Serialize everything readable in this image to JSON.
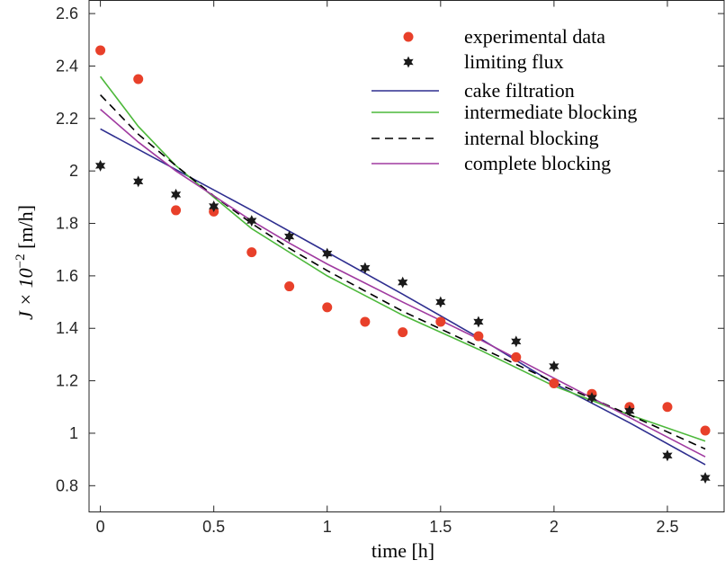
{
  "chart_data": {
    "type": "scatter",
    "title": "",
    "xlabel": "time [h]",
    "ylabel_parts": {
      "prefix": "J × 10",
      "superscript": "−2",
      "suffix": " [m/h]"
    },
    "xlim": [
      -0.05,
      2.75
    ],
    "ylim": [
      0.7,
      2.65
    ],
    "xticks": [
      0,
      0.5,
      1,
      1.5,
      2,
      2.5
    ],
    "xtick_labels": [
      "0",
      "0.5",
      "1",
      "1.5",
      "2",
      "2.5"
    ],
    "yticks": [
      0.8,
      1,
      1.2,
      1.4,
      1.6,
      1.8,
      2,
      2.2,
      2.4,
      2.6
    ],
    "ytick_labels": [
      "0.8",
      "1",
      "1.2",
      "1.4",
      "1.6",
      "1.8",
      "2",
      "2.2",
      "2.4",
      "2.6"
    ],
    "grid": false,
    "legend_placement": "top-right",
    "series": [
      {
        "name": "experimental data",
        "kind": "marker-circle",
        "color": "#e8402a",
        "x": [
          0,
          0.167,
          0.333,
          0.5,
          0.667,
          0.833,
          1.0,
          1.167,
          1.333,
          1.5,
          1.667,
          1.833,
          2.0,
          2.167,
          2.333,
          2.5,
          2.667
        ],
        "y": [
          2.46,
          2.35,
          1.85,
          1.845,
          1.69,
          1.56,
          1.48,
          1.425,
          1.385,
          1.425,
          1.37,
          1.29,
          1.19,
          1.15,
          1.1,
          1.1,
          1.01
        ]
      },
      {
        "name": "limiting flux",
        "kind": "marker-star",
        "color": "#1a1a1a",
        "x": [
          0,
          0.167,
          0.333,
          0.5,
          0.667,
          0.833,
          1.0,
          1.167,
          1.333,
          1.5,
          1.667,
          1.833,
          2.0,
          2.167,
          2.333,
          2.5,
          2.667
        ],
        "y": [
          2.02,
          1.96,
          1.91,
          1.865,
          1.81,
          1.75,
          1.685,
          1.63,
          1.575,
          1.5,
          1.425,
          1.35,
          1.255,
          1.135,
          1.085,
          0.915,
          0.83
        ]
      },
      {
        "name": "cake filtration",
        "kind": "line-solid",
        "color": "#2e2e8f",
        "x": [
          0,
          0.333,
          0.667,
          1.0,
          1.333,
          1.667,
          2.0,
          2.333,
          2.667
        ],
        "y": [
          2.16,
          2.005,
          1.85,
          1.69,
          1.53,
          1.365,
          1.19,
          1.04,
          0.88
        ]
      },
      {
        "name": "intermediate blocking",
        "kind": "line-solid",
        "color": "#4cb83a",
        "x": [
          0,
          0.167,
          0.333,
          0.5,
          0.667,
          0.833,
          1.0,
          1.333,
          1.667,
          2.0,
          2.333,
          2.667
        ],
        "y": [
          2.36,
          2.17,
          2.02,
          1.9,
          1.78,
          1.69,
          1.6,
          1.45,
          1.32,
          1.18,
          1.07,
          0.97
        ]
      },
      {
        "name": "internal blocking",
        "kind": "line-dashed",
        "color": "#000000",
        "x": [
          0,
          0.167,
          0.333,
          0.5,
          0.667,
          0.833,
          1.0,
          1.333,
          1.667,
          2.0,
          2.333,
          2.667
        ],
        "y": [
          2.29,
          2.14,
          2.02,
          1.905,
          1.8,
          1.705,
          1.62,
          1.465,
          1.33,
          1.195,
          1.07,
          0.94
        ]
      },
      {
        "name": "complete blocking",
        "kind": "line-solid",
        "color": "#a03aa0",
        "x": [
          0,
          0.167,
          0.333,
          0.5,
          0.667,
          0.833,
          1.0,
          1.333,
          1.667,
          2.0,
          2.333,
          2.667
        ],
        "y": [
          2.235,
          2.11,
          2.0,
          1.905,
          1.81,
          1.725,
          1.645,
          1.5,
          1.36,
          1.21,
          1.06,
          0.91
        ]
      }
    ]
  }
}
